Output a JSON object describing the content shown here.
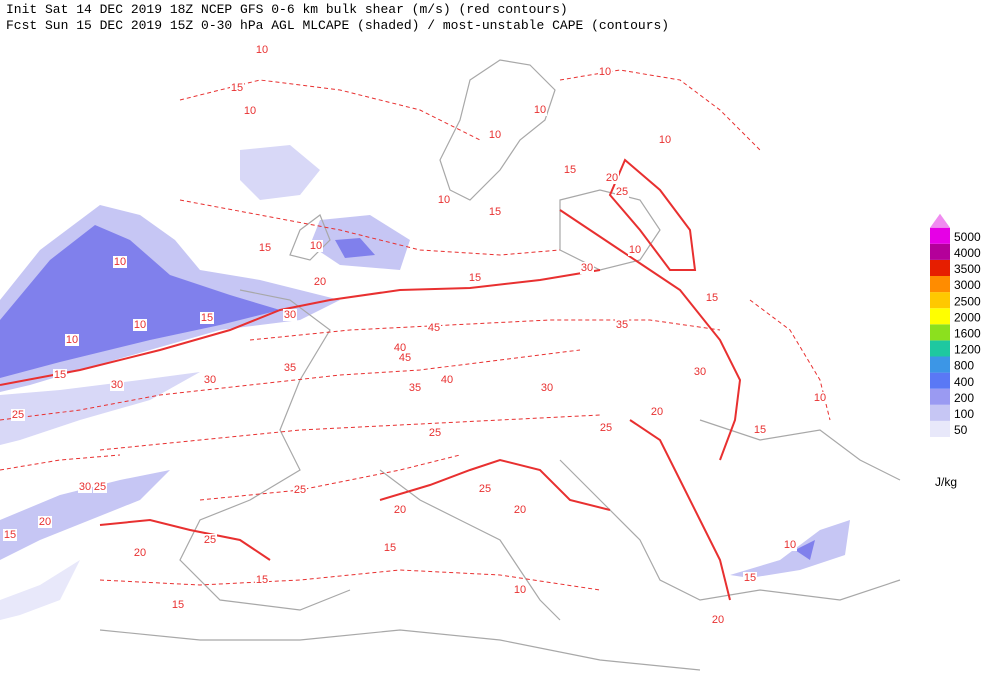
{
  "header": {
    "line1": "Init  Sat 14 DEC 2019 18Z  NCEP GFS 0-6 km bulk shear (m/s) (red contours)",
    "line2": "Fcst Sun 15 DEC 2019 15Z  0-30 hPa AGL MLCAPE (shaded) / most-unstable CAPE (contours)"
  },
  "legend": {
    "levels": [
      50,
      100,
      200,
      400,
      800,
      1200,
      1600,
      2000,
      2500,
      3000,
      3500,
      4000,
      5000
    ],
    "colors": [
      "#e8e8fa",
      "#c6c6f4",
      "#9a9af2",
      "#5a78f5",
      "#3c96e6",
      "#1ec8a0",
      "#8ce01e",
      "#ffff00",
      "#ffc800",
      "#ff8c00",
      "#e61e00",
      "#b4009a",
      "#e600e6"
    ],
    "over_color": "#f08cf0",
    "unit": "J/kg"
  },
  "contour_labels": [
    10,
    15,
    10,
    10,
    10,
    10,
    10,
    15,
    20,
    25,
    10,
    15,
    10,
    15,
    10,
    20,
    30,
    15,
    10,
    10,
    30,
    15,
    45,
    40,
    35,
    35,
    45,
    30,
    15,
    30,
    25,
    40,
    35,
    30,
    20,
    25,
    25,
    25,
    20,
    25,
    20,
    25,
    20,
    15,
    15,
    15,
    10,
    20,
    15,
    10,
    15,
    10,
    15,
    10,
    30,
    20,
    15,
    30,
    25
  ]
}
